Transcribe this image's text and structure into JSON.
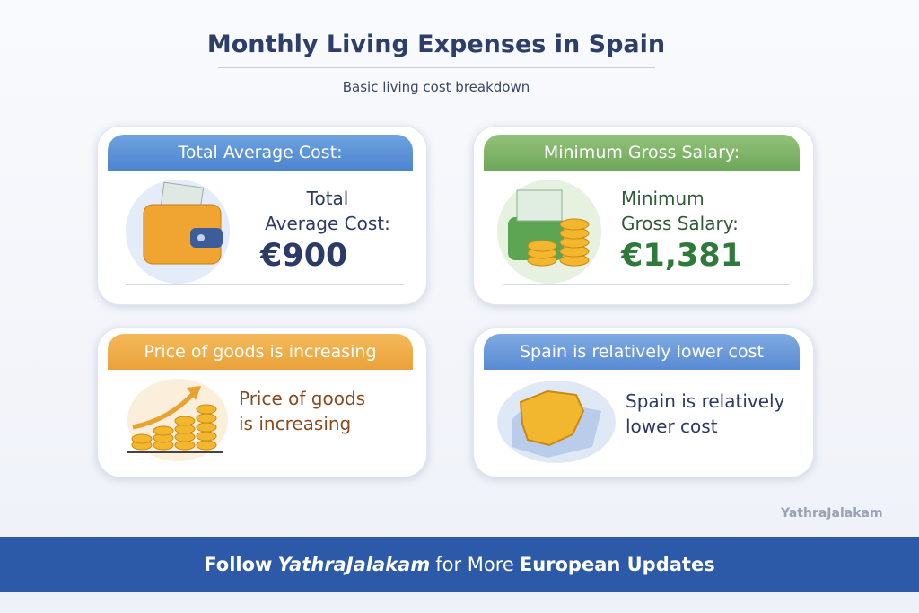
{
  "header": {
    "title": "Monthly Living Expenses in Spain",
    "subtitle": "Basic living cost breakdown"
  },
  "cards": [
    {
      "heading": "Total Average Cost:",
      "lines": [
        "Total",
        "Average Cost:"
      ],
      "value": "€900"
    },
    {
      "heading": "Minimum Gross Salary:",
      "lines": [
        "Minimum",
        "Gross Salary:"
      ],
      "value": "€1,381"
    },
    {
      "heading": "Price of goods is increasing",
      "lines": [
        "Price of goods",
        "is increasing"
      ]
    },
    {
      "heading": "Spain is relatively lower cost",
      "lines": [
        "Spain is relatively",
        "lower cost"
      ]
    }
  ],
  "watermark": "YathraJalakam",
  "footer": {
    "parts": [
      "Follow",
      "YathraJalakam",
      "for More",
      "European Updates"
    ]
  }
}
